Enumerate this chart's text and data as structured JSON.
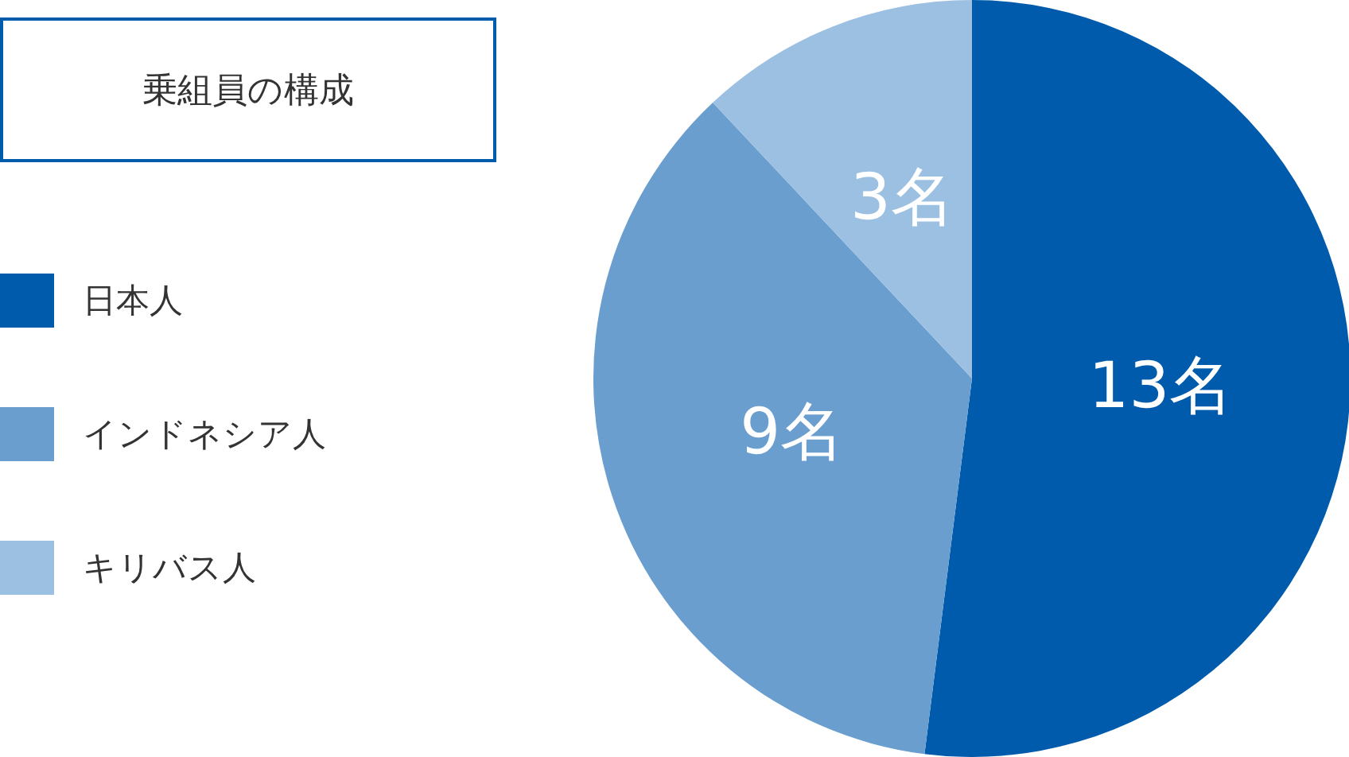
{
  "chart_data": {
    "type": "pie",
    "title": "乗組員の構成",
    "categories": [
      "日本人",
      "インドネシア人",
      "キリバス人"
    ],
    "values": [
      13,
      9,
      3
    ],
    "colors": [
      "#005bac",
      "#6a9ecf",
      "#9cc0e2"
    ],
    "value_labels": [
      "13名",
      "9名",
      "3名"
    ],
    "legend": "left"
  }
}
